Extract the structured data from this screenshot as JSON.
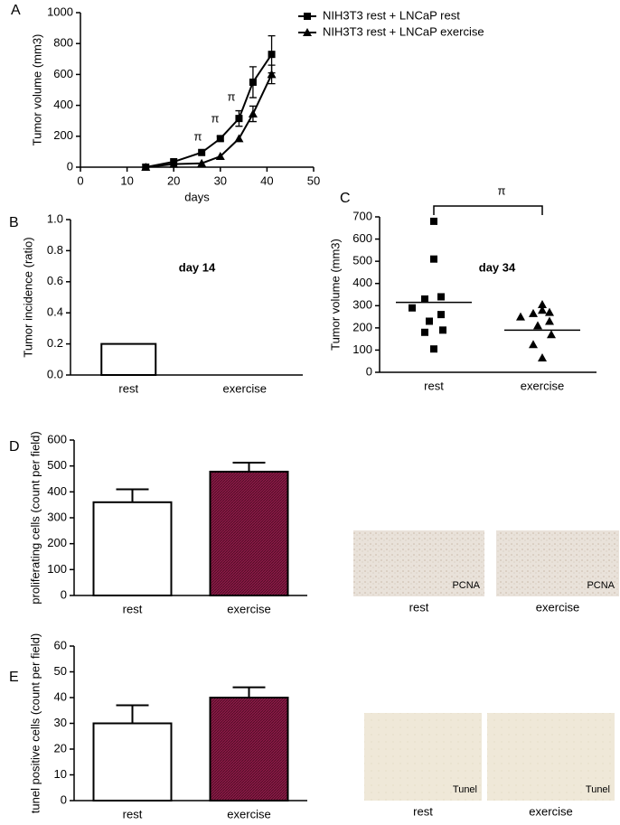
{
  "chart_data": [
    {
      "type": "line",
      "panel": "A",
      "x_label": "days",
      "y_label": "Tumor volume (mm3)",
      "x": [
        14,
        20,
        26,
        30,
        34,
        37,
        41
      ],
      "series": [
        {
          "name": "NIH3T3 rest + LNCaP rest",
          "color": "#000000",
          "marker": "square",
          "values": [
            0,
            35,
            95,
            185,
            315,
            550,
            730
          ],
          "errors": [
            null,
            null,
            null,
            15,
            50,
            100,
            120
          ]
        },
        {
          "name": "NIH3T3 rest + LNCaP exercise",
          "color": "#000000",
          "marker": "triangle",
          "values": [
            0,
            20,
            25,
            70,
            185,
            345,
            600
          ],
          "errors": [
            null,
            null,
            null,
            null,
            null,
            50,
            60
          ]
        }
      ],
      "xlim": [
        0,
        50
      ],
      "xticks": [
        0,
        10,
        20,
        30,
        40,
        50
      ],
      "ylim": [
        0,
        1000
      ],
      "yticks": [
        0,
        200,
        400,
        600,
        800,
        1000
      ],
      "annotations": [
        "π",
        "π",
        "π"
      ]
    },
    {
      "type": "bar",
      "panel": "B",
      "y_label": "Tumor incidence (ratio)",
      "annotations": [
        "day 14"
      ],
      "categories": [
        "rest",
        "exercise"
      ],
      "values": [
        0.2,
        0
      ],
      "colors": [
        "#ffffff",
        "#ffffff"
      ],
      "ylim": [
        0,
        1
      ],
      "yticks": [
        {
          "value": 0,
          "label": "0.0"
        },
        0.2,
        0.4,
        0.6,
        0.8,
        {
          "value": 1,
          "label": "1.0"
        }
      ]
    },
    {
      "type": "strip",
      "panel": "C",
      "y_label": "Tumor volume (mm3)",
      "annotations": [
        "π",
        "day 34"
      ],
      "categories": [
        "rest",
        "exercise"
      ],
      "values": [
        [
          680,
          510,
          340,
          330,
          290,
          260,
          230,
          190,
          180,
          105
        ],
        [
          305,
          280,
          270,
          265,
          250,
          230,
          210,
          170,
          125,
          65
        ]
      ],
      "markers": [
        "square",
        "triangle"
      ],
      "means": [
        315,
        190
      ],
      "ylim": [
        0,
        700
      ],
      "yticks": [
        0,
        100,
        200,
        300,
        400,
        500,
        600,
        700
      ]
    },
    {
      "type": "bar",
      "panel": "D",
      "y_label": "proliferating cells (count per field)",
      "categories": [
        "rest",
        "exercise"
      ],
      "values": [
        360,
        478
      ],
      "errors": [
        50,
        35
      ],
      "colors": [
        "#ffffff",
        "#8b1a47"
      ],
      "ylim": [
        0,
        600
      ],
      "yticks": [
        0,
        100,
        200,
        300,
        400,
        500,
        600
      ]
    },
    {
      "type": "bar",
      "panel": "E",
      "y_label": "tunel positive cells (count per field)",
      "categories": [
        "rest",
        "exercise"
      ],
      "values": [
        30,
        40
      ],
      "errors": [
        7,
        4
      ],
      "colors": [
        "#ffffff",
        "#8b1a47"
      ],
      "ylim": [
        0,
        60
      ],
      "yticks": [
        0,
        10,
        20,
        30,
        40,
        50,
        60
      ]
    }
  ],
  "micrographs": [
    {
      "stain": "PCNA",
      "caption": "rest"
    },
    {
      "stain": "PCNA",
      "caption": "exercise"
    },
    {
      "stain": "Tunel",
      "caption": "rest"
    },
    {
      "stain": "Tunel",
      "caption": "exercise"
    }
  ]
}
